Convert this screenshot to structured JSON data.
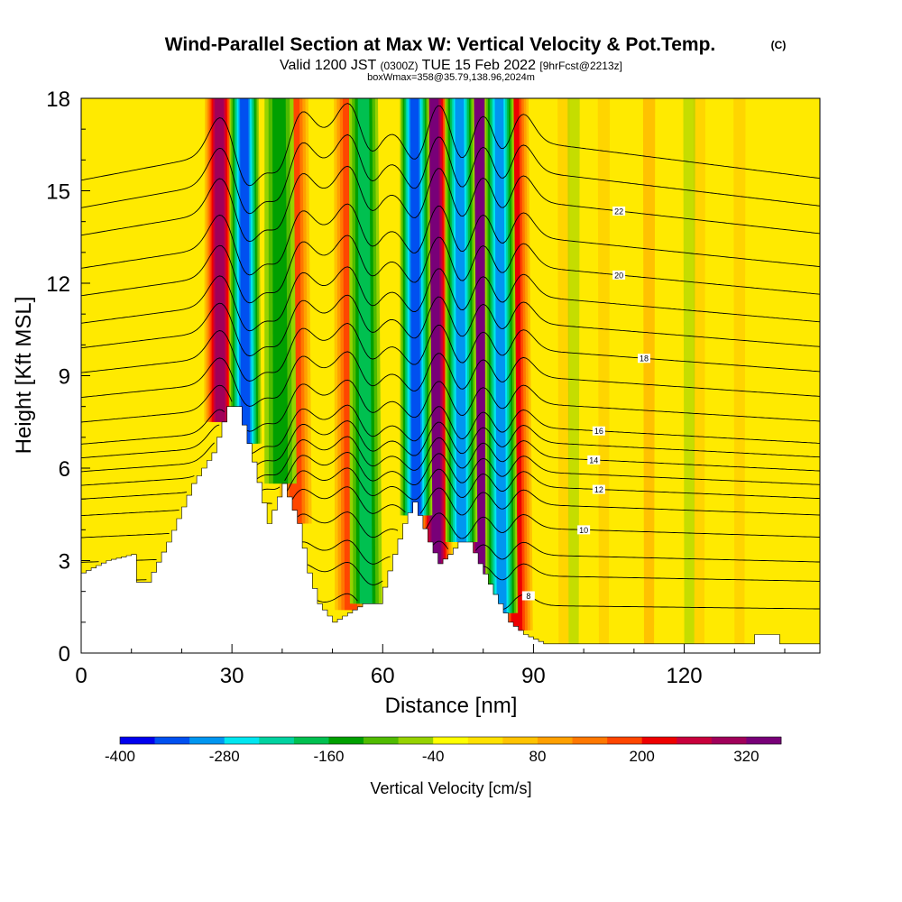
{
  "chart_data": {
    "type": "heatmap",
    "title": "Wind-Parallel Section at Max W: Vertical Velocity & Pot.Temp.",
    "title_mark": "(C)",
    "subtitle": {
      "valid": "Valid 1200 JST",
      "utc": "(0300Z)",
      "date": "TUE 15 Feb 2022",
      "forecast": "[9hrFcst@2213z]"
    },
    "subtitle2": "boxWmax=358@35.79,138.96,2024m",
    "xlabel": "Distance [nm]",
    "ylabel": "Height [Kft MSL]",
    "xlim": [
      0,
      147
    ],
    "ylim": [
      0,
      18
    ],
    "x_ticks": [
      0,
      30,
      60,
      90,
      120
    ],
    "y_ticks": [
      0,
      3,
      6,
      9,
      12,
      15,
      18
    ],
    "colorbar": {
      "label": "Vertical Velocity [cm/s]",
      "range": [
        -400,
        360
      ],
      "step": 40,
      "tick_labels": [
        -400,
        -280,
        -160,
        -40,
        80,
        200,
        320
      ],
      "colors": [
        "#0000ee",
        "#0050f0",
        "#0096f0",
        "#00e6f0",
        "#00d2a0",
        "#00c050",
        "#00a000",
        "#50bb00",
        "#96d200",
        "#ffff00",
        "#ffe100",
        "#ffc300",
        "#ffa000",
        "#ff7800",
        "#ff4600",
        "#ee0000",
        "#c8003c",
        "#a0005a",
        "#780078"
      ]
    },
    "updraft_bands": [
      {
        "x": 28,
        "w": 280
      },
      {
        "x": 43,
        "w": 160
      },
      {
        "x": 54,
        "w": 160
      },
      {
        "x": 71,
        "w": 300
      },
      {
        "x": 80,
        "w": 340
      },
      {
        "x": 87,
        "w": 200
      }
    ],
    "downdraft_bands": [
      {
        "x": 33,
        "w": -320
      },
      {
        "x": 40,
        "w": -120
      },
      {
        "x": 57,
        "w": -160
      },
      {
        "x": 67,
        "w": -320
      },
      {
        "x": 76,
        "w": -280
      },
      {
        "x": 84,
        "w": -280
      }
    ],
    "terrain_kft": [
      {
        "x": 0,
        "h": 2.6
      },
      {
        "x": 5,
        "h": 3.0
      },
      {
        "x": 10,
        "h": 3.2
      },
      {
        "x": 11,
        "h": 2.3
      },
      {
        "x": 13,
        "h": 2.3
      },
      {
        "x": 17,
        "h": 3.6
      },
      {
        "x": 22,
        "h": 5.5
      },
      {
        "x": 26,
        "h": 6.5
      },
      {
        "x": 29,
        "h": 8.0
      },
      {
        "x": 31,
        "h": 8.0
      },
      {
        "x": 34,
        "h": 6.2
      },
      {
        "x": 37,
        "h": 4.2
      },
      {
        "x": 40,
        "h": 5.5
      },
      {
        "x": 43,
        "h": 4.2
      },
      {
        "x": 45,
        "h": 2.6
      },
      {
        "x": 47,
        "h": 1.6
      },
      {
        "x": 50,
        "h": 1.0
      },
      {
        "x": 53,
        "h": 1.3
      },
      {
        "x": 56,
        "h": 1.6
      },
      {
        "x": 59,
        "h": 1.6
      },
      {
        "x": 62,
        "h": 3.2
      },
      {
        "x": 64,
        "h": 4.2
      },
      {
        "x": 66,
        "h": 4.9
      },
      {
        "x": 69,
        "h": 3.6
      },
      {
        "x": 71,
        "h": 2.9
      },
      {
        "x": 73,
        "h": 3.2
      },
      {
        "x": 75,
        "h": 3.6
      },
      {
        "x": 77,
        "h": 3.6
      },
      {
        "x": 79,
        "h": 2.9
      },
      {
        "x": 82,
        "h": 1.9
      },
      {
        "x": 85,
        "h": 1.0
      },
      {
        "x": 88,
        "h": 0.6
      },
      {
        "x": 92,
        "h": 0.3
      },
      {
        "x": 133,
        "h": 0.3
      },
      {
        "x": 134,
        "h": 0.6
      },
      {
        "x": 138,
        "h": 0.6
      },
      {
        "x": 139,
        "h": 0.3
      },
      {
        "x": 147,
        "h": 0.3
      }
    ],
    "isentropes": [
      {
        "label": "8",
        "base": 1.6,
        "label_x": 89
      },
      {
        "label": "",
        "base": 2.6
      },
      {
        "label": "",
        "base": 3.3
      },
      {
        "label": "10",
        "base": 4.2,
        "label_x": 100
      },
      {
        "label": "",
        "base": 5.0
      },
      {
        "label": "12",
        "base": 5.6,
        "label_x": 103
      },
      {
        "label": "",
        "base": 6.1
      },
      {
        "label": "14",
        "base": 6.6,
        "label_x": 102
      },
      {
        "label": "",
        "base": 7.1
      },
      {
        "label": "16",
        "base": 7.6,
        "label_x": 103
      },
      {
        "label": "",
        "base": 8.4
      },
      {
        "label": "",
        "base": 9.3
      },
      {
        "label": "18",
        "base": 10.2,
        "label_x": 112
      },
      {
        "label": "",
        "base": 11.1
      },
      {
        "label": "",
        "base": 12.0
      },
      {
        "label": "20",
        "base": 13.0,
        "label_x": 107
      },
      {
        "label": "",
        "base": 14.0
      },
      {
        "label": "22",
        "base": 15.2,
        "label_x": 107
      },
      {
        "label": "",
        "base": 16.2
      },
      {
        "label": "",
        "base": 17.2
      }
    ]
  }
}
